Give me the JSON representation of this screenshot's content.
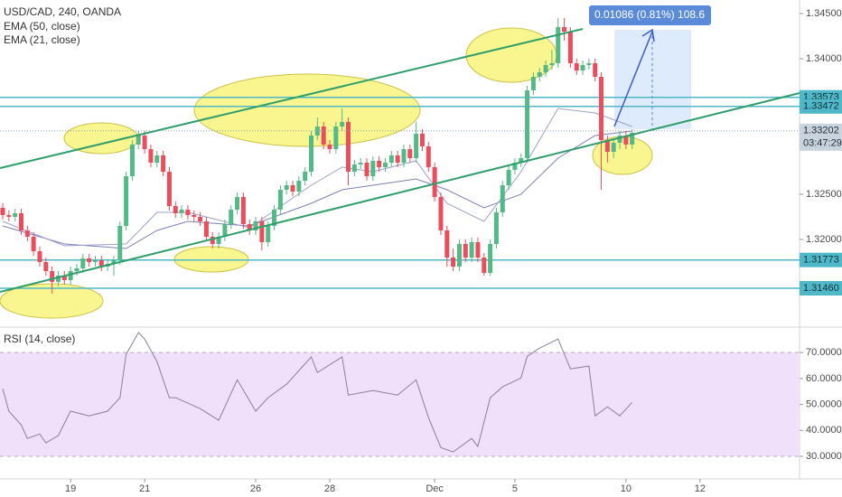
{
  "chart_data": [
    {
      "type": "candlestick",
      "title": "USD/CAD, 240, OANDA",
      "x": [
        0,
        1,
        2,
        3,
        4,
        5,
        6,
        7,
        8,
        9,
        10,
        11,
        12,
        13,
        14,
        15,
        16,
        17,
        18,
        19,
        20,
        21,
        22,
        23,
        24,
        25,
        26,
        27,
        28,
        29,
        30,
        31,
        32,
        33,
        34,
        35,
        36,
        37,
        38,
        39,
        40,
        41,
        42,
        43,
        44,
        45,
        46,
        47,
        48,
        49,
        50,
        51,
        52,
        53,
        54,
        55,
        56,
        57,
        58,
        59,
        60,
        61,
        62,
        63,
        64,
        65,
        66,
        67,
        68,
        69,
        70,
        71,
        72,
        73,
        74,
        75,
        76,
        77,
        78,
        79,
        80,
        81,
        82,
        83,
        84,
        85,
        86,
        87,
        88,
        89,
        90,
        91,
        92,
        93,
        94,
        95,
        96,
        97,
        98,
        99,
        100,
        101,
        102
      ],
      "open": [
        1.3235,
        1.3227,
        1.3225,
        1.3229,
        1.321,
        1.3203,
        1.3187,
        1.3175,
        1.3165,
        1.3153,
        1.316,
        1.3155,
        1.3165,
        1.3168,
        1.3179,
        1.3175,
        1.3177,
        1.317,
        1.3173,
        1.3177,
        1.3215,
        1.327,
        1.3305,
        1.3315,
        1.33,
        1.3285,
        1.3293,
        1.3275,
        1.3237,
        1.3229,
        1.3233,
        1.3227,
        1.3225,
        1.322,
        1.3203,
        1.3195,
        1.3203,
        1.3217,
        1.3233,
        1.3247,
        1.3217,
        1.321,
        1.322,
        1.3197,
        1.3215,
        1.3233,
        1.3255,
        1.326,
        1.3253,
        1.3265,
        1.3275,
        1.3315,
        1.3325,
        1.3305,
        1.33,
        1.3325,
        1.333,
        1.3275,
        1.3283,
        1.3285,
        1.327,
        1.3287,
        1.328,
        1.3285,
        1.3293,
        1.3285,
        1.33,
        1.329,
        1.3317,
        1.3303,
        1.328,
        1.3247,
        1.321,
        1.318,
        1.317,
        1.3195,
        1.318,
        1.3197,
        1.318,
        1.3163,
        1.3195,
        1.323,
        1.326,
        1.3277,
        1.3285,
        1.329,
        1.3365,
        1.338,
        1.3385,
        1.3393,
        1.3395,
        1.3435,
        1.343,
        1.3395,
        1.3387,
        1.3393,
        1.3395,
        1.338,
        1.331,
        1.3297,
        1.3307,
        1.3315,
        1.3305
      ],
      "high": [
        1.324,
        1.3232,
        1.3234,
        1.3234,
        1.3215,
        1.3208,
        1.3192,
        1.318,
        1.317,
        1.3165,
        1.3165,
        1.317,
        1.3173,
        1.3184,
        1.3184,
        1.3182,
        1.3182,
        1.3178,
        1.3182,
        1.322,
        1.3275,
        1.331,
        1.332,
        1.332,
        1.3305,
        1.3298,
        1.3298,
        1.328,
        1.3242,
        1.3238,
        1.3238,
        1.3232,
        1.323,
        1.3225,
        1.3208,
        1.3208,
        1.3222,
        1.3238,
        1.3252,
        1.3252,
        1.3222,
        1.3225,
        1.3225,
        1.322,
        1.3238,
        1.326,
        1.3265,
        1.3265,
        1.327,
        1.328,
        1.332,
        1.3335,
        1.333,
        1.331,
        1.333,
        1.3345,
        1.3335,
        1.3288,
        1.329,
        1.329,
        1.3292,
        1.3292,
        1.329,
        1.3298,
        1.3298,
        1.3305,
        1.3305,
        1.333,
        1.3322,
        1.3308,
        1.3285,
        1.3252,
        1.3215,
        1.319,
        1.32,
        1.32,
        1.3202,
        1.3202,
        1.3185,
        1.32,
        1.3235,
        1.3265,
        1.3282,
        1.329,
        1.3295,
        1.337,
        1.3385,
        1.339,
        1.3398,
        1.341,
        1.3445,
        1.3445,
        1.3435,
        1.34,
        1.3398,
        1.34,
        1.34,
        1.3385,
        1.3315,
        1.3312,
        1.332,
        1.332,
        1.3322
      ],
      "low": [
        1.3222,
        1.322,
        1.322,
        1.3205,
        1.3198,
        1.3182,
        1.317,
        1.316,
        1.314,
        1.3148,
        1.315,
        1.315,
        1.316,
        1.3163,
        1.317,
        1.317,
        1.3165,
        1.3165,
        1.316,
        1.3172,
        1.321,
        1.3265,
        1.33,
        1.3295,
        1.328,
        1.328,
        1.327,
        1.3232,
        1.3224,
        1.3224,
        1.3222,
        1.322,
        1.3215,
        1.3198,
        1.319,
        1.319,
        1.3198,
        1.3212,
        1.3228,
        1.3212,
        1.3205,
        1.3205,
        1.3188,
        1.3192,
        1.321,
        1.3228,
        1.325,
        1.3248,
        1.3248,
        1.326,
        1.327,
        1.331,
        1.33,
        1.3295,
        1.3295,
        1.332,
        1.326,
        1.327,
        1.3278,
        1.3265,
        1.3265,
        1.3275,
        1.3275,
        1.328,
        1.328,
        1.328,
        1.3285,
        1.3285,
        1.3298,
        1.3275,
        1.3242,
        1.3205,
        1.317,
        1.3165,
        1.3165,
        1.3175,
        1.3175,
        1.3175,
        1.316,
        1.316,
        1.319,
        1.3225,
        1.3255,
        1.3272,
        1.328,
        1.3285,
        1.336,
        1.3375,
        1.338,
        1.3388,
        1.339,
        1.342,
        1.339,
        1.3382,
        1.3382,
        1.3388,
        1.3375,
        1.3255,
        1.3285,
        1.329,
        1.33,
        1.33,
        1.33
      ],
      "close": [
        1.3227,
        1.3225,
        1.3229,
        1.321,
        1.3203,
        1.3187,
        1.3175,
        1.3165,
        1.3153,
        1.316,
        1.3155,
        1.3165,
        1.3168,
        1.3179,
        1.3175,
        1.3177,
        1.317,
        1.3173,
        1.3177,
        1.3215,
        1.327,
        1.3305,
        1.3315,
        1.33,
        1.3285,
        1.3293,
        1.3275,
        1.3237,
        1.3229,
        1.3233,
        1.3227,
        1.3225,
        1.322,
        1.3203,
        1.3195,
        1.3203,
        1.3217,
        1.3233,
        1.3247,
        1.3217,
        1.321,
        1.322,
        1.3197,
        1.3215,
        1.3233,
        1.3255,
        1.326,
        1.3253,
        1.3265,
        1.3275,
        1.3315,
        1.3325,
        1.3305,
        1.33,
        1.3325,
        1.333,
        1.3275,
        1.3283,
        1.3285,
        1.327,
        1.3287,
        1.328,
        1.3285,
        1.3293,
        1.3285,
        1.33,
        1.329,
        1.3317,
        1.3303,
        1.328,
        1.3247,
        1.321,
        1.318,
        1.317,
        1.3195,
        1.318,
        1.3197,
        1.318,
        1.3163,
        1.3195,
        1.323,
        1.326,
        1.3277,
        1.3285,
        1.329,
        1.3365,
        1.338,
        1.3385,
        1.3393,
        1.3395,
        1.3435,
        1.343,
        1.3395,
        1.3387,
        1.3393,
        1.3395,
        1.338,
        1.331,
        1.3297,
        1.3307,
        1.3315,
        1.3305,
        1.3318
      ],
      "up_color": "#53b987",
      "down_color": "#eb4d5c",
      "series": [
        {
          "name": "EMA (50, close)",
          "color": "#7c7fb8",
          "x": [
            0,
            10,
            20,
            25,
            30,
            40,
            50,
            55,
            60,
            67,
            72,
            78,
            84,
            90,
            96,
            102
          ],
          "values": [
            1.3215,
            1.3195,
            1.319,
            1.321,
            1.322,
            1.3215,
            1.324,
            1.3255,
            1.326,
            1.3267,
            1.3255,
            1.3235,
            1.325,
            1.329,
            1.3315,
            1.332
          ]
        },
        {
          "name": "EMA (21, close)",
          "color": "#9aa0c8",
          "x": [
            0,
            10,
            20,
            25,
            30,
            40,
            50,
            55,
            60,
            67,
            72,
            78,
            84,
            90,
            96,
            102
          ],
          "values": [
            1.322,
            1.3193,
            1.3195,
            1.323,
            1.323,
            1.3213,
            1.326,
            1.328,
            1.3275,
            1.3287,
            1.324,
            1.322,
            1.3275,
            1.3345,
            1.334,
            1.3325
          ]
        }
      ],
      "xlim": [
        -0.44,
        129.13
      ],
      "xticks": [
        {
          "value": 11,
          "label": "19"
        },
        {
          "value": 23,
          "label": "21"
        },
        {
          "value": 41,
          "label": "26"
        },
        {
          "value": 53,
          "label": "28"
        },
        {
          "value": 70,
          "label": "Dec"
        },
        {
          "value": 83,
          "label": "5"
        },
        {
          "value": 101,
          "label": "10"
        },
        {
          "value": 113,
          "label": "12"
        }
      ],
      "ylim": [
        1.3105,
        1.3465
      ],
      "yticks": [
        {
          "value": 1.345,
          "label": "1.34500"
        },
        {
          "value": 1.34,
          "label": "1.34000"
        },
        {
          "value": 1.325,
          "label": "1.32500"
        },
        {
          "value": 1.32,
          "label": "1.32000"
        }
      ],
      "levels": [
        1.33573,
        1.33472,
        1.31773,
        {
          "value": 1.3146,
          "label": "1.31460"
        }
      ],
      "level_color": "#4fb8c8",
      "last_price": 1.33202,
      "countdown": "03:47:29",
      "measure_label": "0.01086 (0.81%) 108.6",
      "grid": false
    },
    {
      "type": "line",
      "title": "RSI (14, close)",
      "color": "#8d7f95",
      "x": [
        0,
        1,
        3,
        4,
        6,
        7,
        9,
        11,
        14,
        17,
        19,
        20,
        22,
        23,
        25,
        27,
        28,
        32,
        35,
        38,
        41,
        43,
        46,
        50,
        51,
        55,
        56,
        60,
        64,
        67,
        69,
        71,
        73,
        76,
        77,
        79,
        81,
        84,
        85,
        87,
        90,
        92,
        95,
        96,
        98,
        100,
        102
      ],
      "values": [
        56.1,
        47.4,
        42.1,
        36.9,
        38.6,
        35.2,
        38.0,
        47.4,
        45.6,
        47.4,
        52.6,
        69.3,
        77.7,
        75.2,
        66.5,
        52.6,
        52.6,
        48.4,
        43.9,
        59.5,
        47.4,
        52.6,
        57.8,
        68.3,
        62.3,
        68.3,
        53.6,
        55.4,
        53.6,
        59.5,
        44.9,
        33.4,
        31.7,
        36.9,
        33.8,
        52.6,
        56.8,
        60.2,
        68.6,
        71.7,
        75.2,
        63.7,
        64.8,
        45.6,
        49.1,
        45.6,
        50.8
      ],
      "band": [
        30,
        70
      ],
      "xlim": [
        -0.44,
        129.13
      ],
      "ylim": [
        21.3,
        79.8
      ],
      "yticks": [
        {
          "value": 30,
          "label": "30.0000"
        },
        {
          "value": 40,
          "label": "40.0000"
        },
        {
          "value": 50,
          "label": "50.0000"
        },
        {
          "value": 60,
          "label": "60.0000"
        },
        {
          "value": 70,
          "label": "70.0000"
        }
      ]
    }
  ]
}
